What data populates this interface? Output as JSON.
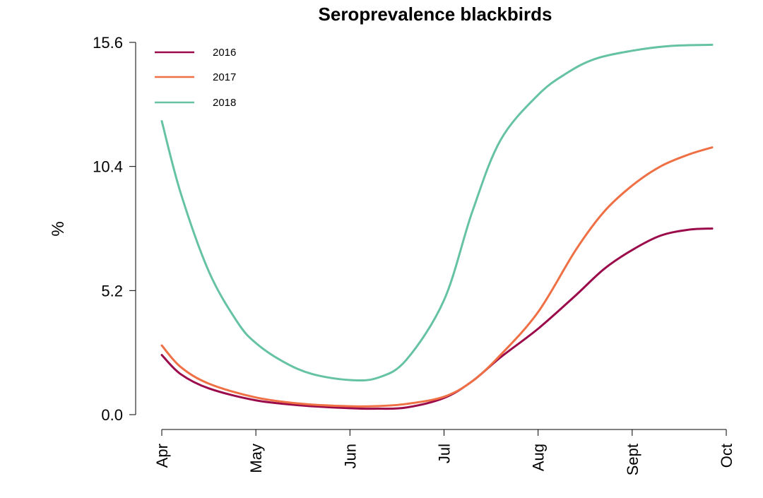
{
  "chart_data": {
    "type": "line",
    "title": "Seroprevalence blackbirds",
    "xlabel": "",
    "ylabel": "%",
    "x_ticks": [
      "Apr",
      "May",
      "Jun",
      "Jul",
      "Aug",
      "Sept",
      "Oct"
    ],
    "y_ticks": [
      "0.0",
      "5.2",
      "10.4",
      "15.6"
    ],
    "ylim": [
      0,
      15.6
    ],
    "xlim": [
      0,
      6
    ],
    "grid": false,
    "legend_position": "top-left",
    "series": [
      {
        "name": "2016",
        "color": "#9b0a4a",
        "x": [
          0,
          0.2,
          0.5,
          1.0,
          1.5,
          2.0,
          2.3,
          2.6,
          3.0,
          3.3,
          3.6,
          4.0,
          4.4,
          4.7,
          5.0,
          5.3,
          5.6,
          5.85
        ],
        "y": [
          2.5,
          1.7,
          1.1,
          0.6,
          0.38,
          0.27,
          0.25,
          0.3,
          0.7,
          1.4,
          2.4,
          3.6,
          5.0,
          6.1,
          6.9,
          7.5,
          7.75,
          7.8
        ]
      },
      {
        "name": "2017",
        "color": "#ef7045",
        "x": [
          0,
          0.2,
          0.5,
          1.0,
          1.5,
          2.0,
          2.3,
          2.6,
          3.0,
          3.3,
          3.6,
          4.0,
          4.4,
          4.7,
          5.0,
          5.3,
          5.6,
          5.85
        ],
        "y": [
          2.9,
          2.0,
          1.3,
          0.72,
          0.45,
          0.35,
          0.36,
          0.45,
          0.75,
          1.4,
          2.5,
          4.3,
          6.9,
          8.5,
          9.6,
          10.4,
          10.9,
          11.2
        ]
      },
      {
        "name": "2018",
        "color": "#66c2a5",
        "x": [
          0,
          0.2,
          0.5,
          0.8,
          1.0,
          1.3,
          1.6,
          2.0,
          2.3,
          2.6,
          3.0,
          3.3,
          3.6,
          4.0,
          4.3,
          4.6,
          5.0,
          5.4,
          5.85
        ],
        "y": [
          12.3,
          9.3,
          6.0,
          3.9,
          3.0,
          2.2,
          1.7,
          1.45,
          1.55,
          2.3,
          4.8,
          8.5,
          11.5,
          13.4,
          14.3,
          14.9,
          15.25,
          15.45,
          15.5
        ]
      }
    ]
  }
}
